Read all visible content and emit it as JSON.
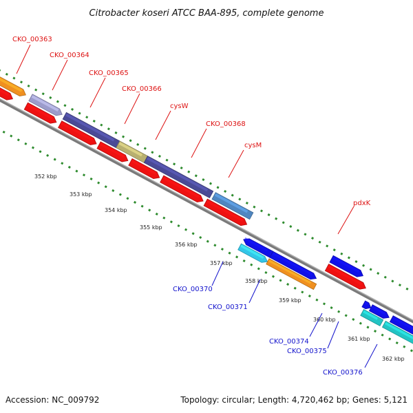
{
  "title": "Citrobacter koseri ATCC BAA-895, complete genome",
  "footer": {
    "accession": "Accession: NC_009792",
    "topology": "Topology: circular; Length: 4,720,462 bp; Genes: 5,121"
  },
  "colors": {
    "forward_gene": "#1010e8",
    "reverse_gene": "#ee1111",
    "slate_gene": "#4a4a96",
    "olive_gene": "#b8b070",
    "steel_gene": "#4f86c0",
    "cyan_gene": "#33c6e8",
    "teal_gene": "#22c4c4",
    "orange_gene": "#f09020",
    "backbone": "#888888",
    "gc_dots": "#2e8b2e",
    "red_label": "#dd1111",
    "blue_label": "#1111cc"
  },
  "scale_labels": [
    "352 kbp",
    "353 kbp",
    "354 kbp",
    "355 kbp",
    "356 kbp",
    "357 kbp",
    "358 kbp",
    "359 kbp",
    "360 kbp",
    "361 kbp",
    "362 kbp"
  ],
  "gene_labels_red": [
    "CKO_00363",
    "CKO_00364",
    "CKO_00365",
    "CKO_00366",
    "cysW",
    "CKO_00368",
    "cysM",
    "pdxK"
  ],
  "gene_labels_blue": [
    "CKO_00370",
    "CKO_00371",
    "CKO_00374",
    "CKO_00375",
    "CKO_00376"
  ]
}
